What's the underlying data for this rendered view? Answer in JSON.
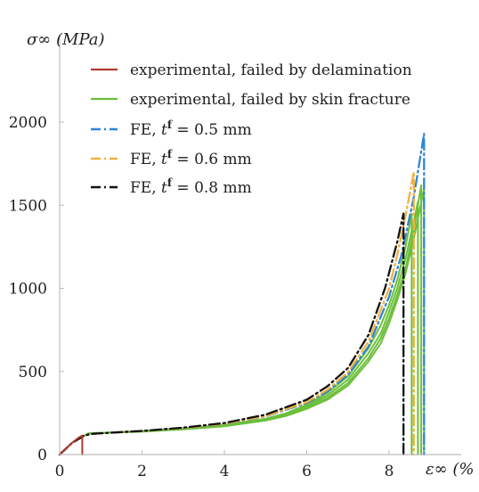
{
  "chart_data": {
    "type": "line",
    "xlabel": "ε∞ (%",
    "ylabel": "σ∞ (MPa)",
    "xlim": [
      0,
      9.5
    ],
    "ylim": [
      0,
      2200
    ],
    "xticks": [
      0,
      2,
      4,
      6,
      8
    ],
    "yticks": [
      0,
      500,
      1000,
      1500,
      2000
    ],
    "grid": false,
    "legend_position": "top-left",
    "series": [
      {
        "name": "experimental, failed by delamination",
        "color": "#b03a2e",
        "style": "solid",
        "x": [
          0,
          0.15,
          0.3,
          0.45,
          0.55,
          0.55
        ],
        "y": [
          0,
          35,
          70,
          100,
          115,
          0
        ]
      },
      {
        "name": "experimental, failed by skin fracture",
        "color": "#6cbf3a",
        "style": "solid",
        "curves": [
          {
            "x": [
              0,
              0.3,
              0.6,
              0.7,
              1,
              2,
              3,
              4,
              5,
              5.5,
              6,
              6.5,
              7,
              7.5,
              7.8,
              8,
              8.2,
              8.4,
              8.6,
              8.78,
              8.78
            ],
            "y": [
              0,
              70,
              115,
              128,
              130,
              140,
              155,
              175,
              210,
              240,
              285,
              340,
              430,
              580,
              700,
              820,
              960,
              1120,
              1350,
              1620,
              0
            ]
          },
          {
            "x": [
              0.7,
              1,
              2,
              3,
              4,
              5,
              5.5,
              6,
              6.5,
              7,
              7.5,
              7.8,
              8,
              8.2,
              8.4,
              8.55,
              8.55
            ],
            "y": [
              128,
              130,
              142,
              158,
              178,
              215,
              248,
              300,
              370,
              470,
              640,
              780,
              900,
              1050,
              1250,
              1450,
              0
            ]
          },
          {
            "x": [
              0.7,
              1,
              2,
              3,
              4,
              5,
              5.5,
              6,
              6.5,
              7,
              7.5,
              7.8,
              8,
              8.2,
              8.4,
              8.6,
              8.85,
              8.85
            ],
            "y": [
              128,
              130,
              138,
              152,
              170,
              205,
              232,
              275,
              330,
              415,
              560,
              670,
              790,
              930,
              1090,
              1300,
              1600,
              0
            ]
          },
          {
            "x": [
              0.7,
              1,
              2,
              3,
              4,
              5,
              5.5,
              6,
              6.5,
              7,
              7.5,
              7.8,
              8,
              8.2,
              8.4,
              8.6,
              8.7,
              8.7
            ],
            "y": [
              128,
              130,
              141,
              156,
              176,
              212,
              244,
              292,
              355,
              450,
              610,
              730,
              860,
              1000,
              1180,
              1400,
              1520,
              0
            ]
          }
        ]
      },
      {
        "name": "FE, t^f = 0.5 mm",
        "color": "#2f86d6",
        "style": "dash-dot",
        "x": [
          0,
          0.3,
          0.6,
          0.8,
          1,
          2,
          3,
          4,
          5,
          6,
          6.5,
          7,
          7.5,
          8,
          8.3,
          8.6,
          8.85,
          8.85
        ],
        "y": [
          0,
          70,
          115,
          125,
          128,
          142,
          160,
          185,
          230,
          310,
          380,
          480,
          650,
          950,
          1200,
          1550,
          1930,
          0
        ]
      },
      {
        "name": "FE, t^f = 0.6 mm",
        "color": "#f2b13c",
        "style": "dash-dot",
        "x": [
          0,
          0.3,
          0.6,
          0.8,
          1,
          2,
          3,
          4,
          5,
          6,
          6.5,
          7,
          7.5,
          8,
          8.2,
          8.45,
          8.6,
          8.6
        ],
        "y": [
          0,
          70,
          115,
          125,
          128,
          142,
          160,
          186,
          232,
          315,
          390,
          495,
          680,
          1000,
          1200,
          1500,
          1700,
          0
        ]
      },
      {
        "name": "FE, t^f = 0.8 mm",
        "color": "#111111",
        "style": "dash-dot",
        "x": [
          0,
          0.3,
          0.6,
          0.8,
          1,
          2,
          3,
          4,
          5,
          6,
          6.5,
          7,
          7.5,
          7.9,
          8.2,
          8.35,
          8.35
        ],
        "y": [
          0,
          70,
          115,
          125,
          128,
          142,
          162,
          190,
          240,
          330,
          410,
          520,
          720,
          1000,
          1280,
          1450,
          0
        ]
      }
    ]
  }
}
